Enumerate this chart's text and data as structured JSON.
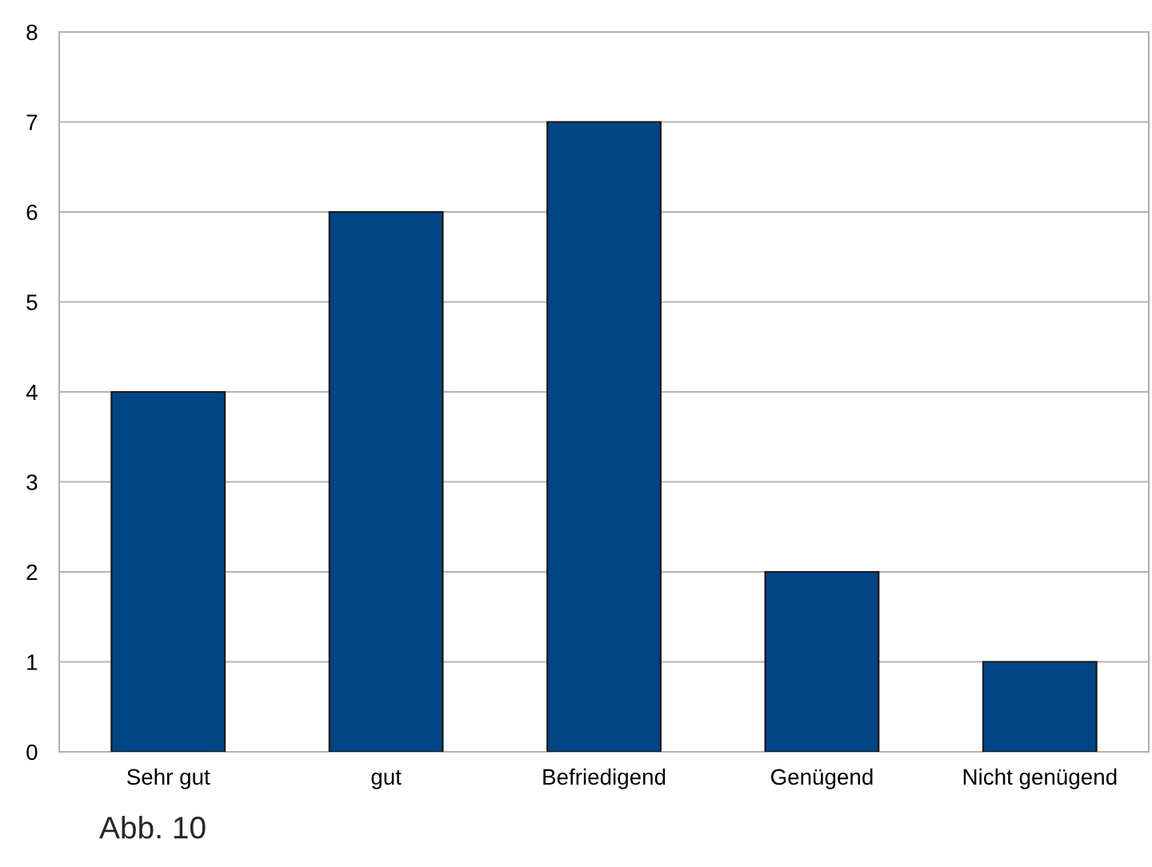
{
  "chart_data": {
    "type": "bar",
    "categories": [
      "Sehr gut",
      "gut",
      "Befriedigend",
      "Genügend",
      "Nicht genügend"
    ],
    "values": [
      4,
      6,
      7,
      2,
      1
    ],
    "color": "#004586",
    "ylim": [
      0,
      8
    ],
    "yticks": [
      0,
      1,
      2,
      3,
      4,
      5,
      6,
      7,
      8
    ],
    "grid": "y",
    "legend": false,
    "annotations": [
      "Abb. 10"
    ]
  }
}
